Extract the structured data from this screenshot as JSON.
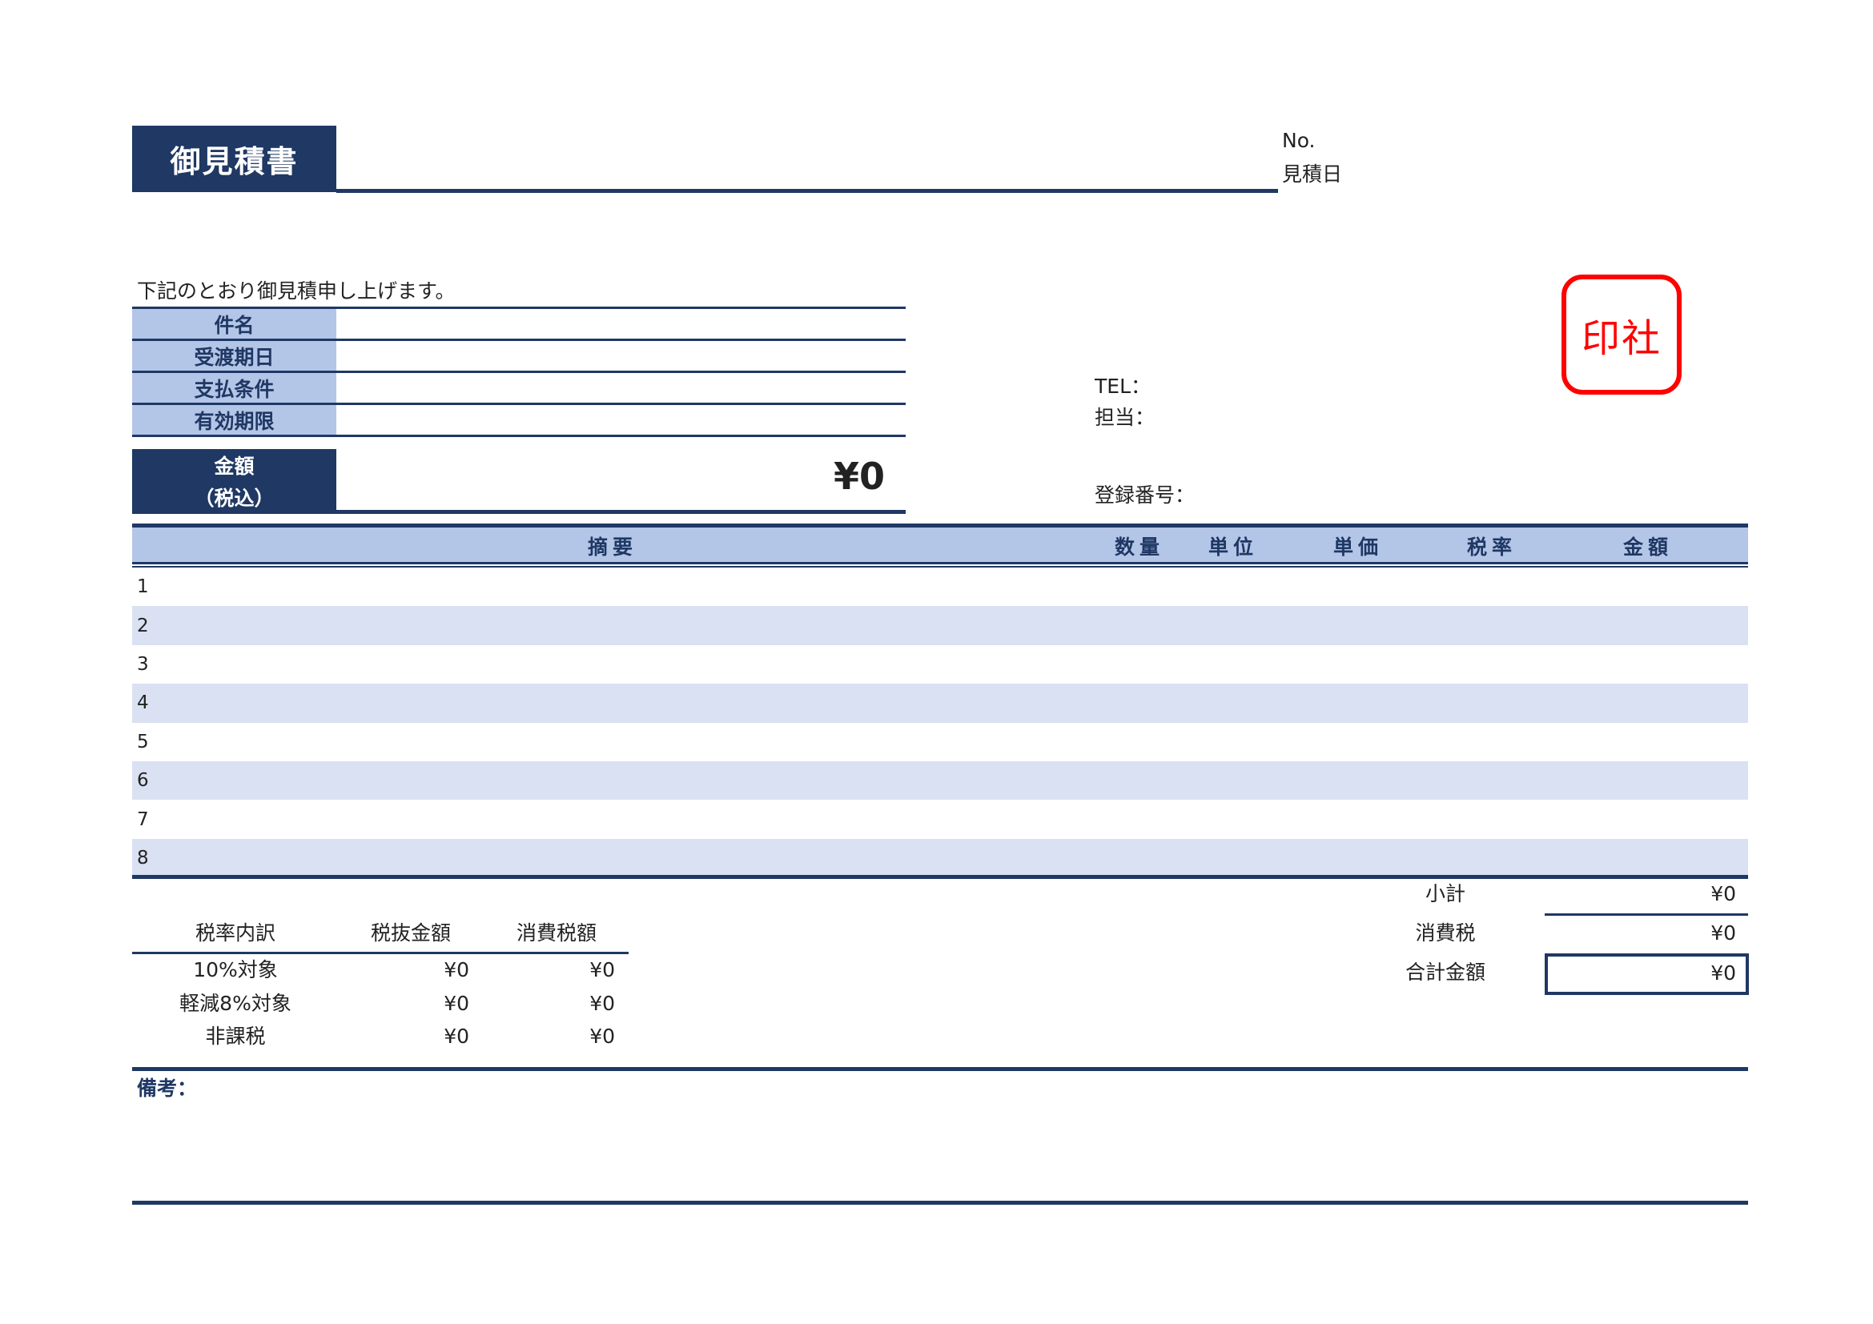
{
  "header": {
    "title": "御見積書",
    "no_label": "No.",
    "date_label": "見積日"
  },
  "intro": "下記のとおり御見積申し上げます。",
  "fields": [
    {
      "label": "件名",
      "value": ""
    },
    {
      "label": "受渡期日",
      "value": ""
    },
    {
      "label": "支払条件",
      "value": ""
    },
    {
      "label": "有効期限",
      "value": ""
    }
  ],
  "amount": {
    "label1": "金額",
    "label2": "（税込）",
    "value": "¥0"
  },
  "company": {
    "tel_label": "TEL：",
    "person_label": "担当：",
    "reg_label": "登録番号：",
    "stamp_text": "印社"
  },
  "table": {
    "columns": [
      "摘要",
      "数量",
      "単位",
      "単価",
      "税率",
      "金額"
    ],
    "rows": [
      "1",
      "2",
      "3",
      "4",
      "5",
      "6",
      "7",
      "8"
    ]
  },
  "totals": {
    "subtotal_label": "小計",
    "subtotal": "¥0",
    "tax_label": "消費税",
    "tax": "¥0",
    "total_label": "合計金額",
    "total": "¥0"
  },
  "tax_breakdown": {
    "headers": [
      "税率内訳",
      "税抜金額",
      "消費税額"
    ],
    "rows": [
      [
        "10%対象",
        "¥0",
        "¥0"
      ],
      [
        "軽減8%対象",
        "¥0",
        "¥0"
      ],
      [
        "非課税",
        "¥0",
        "¥0"
      ]
    ]
  },
  "notes_label": "備考：",
  "colors": {
    "navy": "#1f3864",
    "light_blue": "#b4c6e7",
    "stripe": "#dae1f2",
    "stamp_red": "#ff0000"
  }
}
